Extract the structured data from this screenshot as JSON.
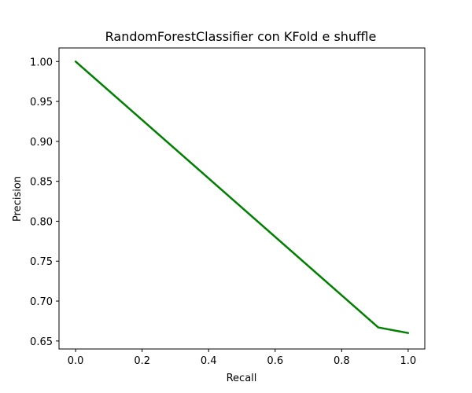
{
  "chart_data": {
    "type": "line",
    "title": "RandomForestClassifier con KFold e shuffle",
    "xlabel": "Recall",
    "ylabel": "Precision",
    "xlim": [
      -0.05,
      1.05
    ],
    "ylim": [
      0.64,
      1.017
    ],
    "xticks": [
      0.0,
      0.2,
      0.4,
      0.6,
      0.8,
      1.0
    ],
    "xtick_labels": [
      "0.0",
      "0.2",
      "0.4",
      "0.6",
      "0.8",
      "1.0"
    ],
    "yticks": [
      0.65,
      0.7,
      0.75,
      0.8,
      0.85,
      0.9,
      0.95,
      1.0
    ],
    "ytick_labels": [
      "0.65",
      "0.70",
      "0.75",
      "0.80",
      "0.85",
      "0.90",
      "0.95",
      "1.00"
    ],
    "grid": false,
    "series": [
      {
        "color": "#008000",
        "x": [
          0.0,
          0.91,
          1.0
        ],
        "y": [
          1.0,
          0.667,
          0.66
        ]
      }
    ]
  }
}
